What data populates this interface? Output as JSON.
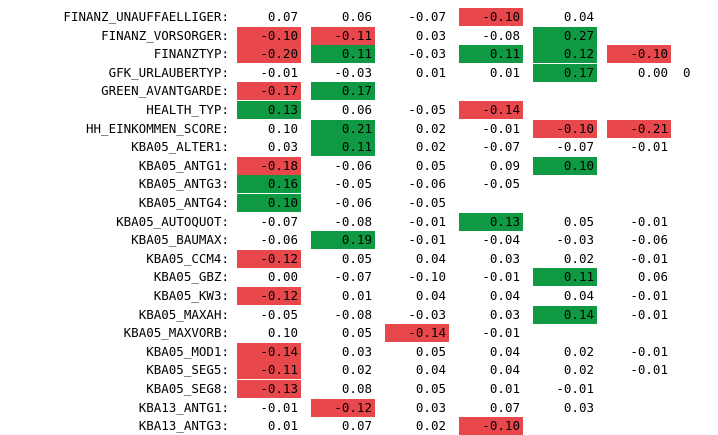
{
  "colors": {
    "negative": "#e8474c",
    "positive": "#0f9942"
  },
  "rows": [
    {
      "label": "FINANZ_UNAUFFAELLIGER:",
      "cells": [
        {
          "v": "0.07"
        },
        {
          "v": "0.06"
        },
        {
          "v": "-0.07"
        },
        {
          "v": "-0.10",
          "c": "red"
        },
        {
          "v": "0.04"
        },
        {
          "v": ""
        }
      ]
    },
    {
      "label": "FINANZ_VORSORGER:",
      "cells": [
        {
          "v": "-0.10",
          "c": "red"
        },
        {
          "v": "-0.11",
          "c": "red"
        },
        {
          "v": "0.03"
        },
        {
          "v": "-0.08"
        },
        {
          "v": "0.27",
          "c": "green"
        },
        {
          "v": ""
        }
      ]
    },
    {
      "label": "FINANZTYP:",
      "cells": [
        {
          "v": "-0.20",
          "c": "red"
        },
        {
          "v": "0.11",
          "c": "green"
        },
        {
          "v": "-0.03"
        },
        {
          "v": "0.11",
          "c": "green"
        },
        {
          "v": "0.12",
          "c": "green"
        },
        {
          "v": "-0.10",
          "c": "red"
        }
      ]
    },
    {
      "label": "GFK_URLAUBERTYP:",
      "cells": [
        {
          "v": "-0.01"
        },
        {
          "v": "-0.03"
        },
        {
          "v": "0.01"
        },
        {
          "v": "0.01"
        },
        {
          "v": "0.17",
          "c": "green"
        },
        {
          "v": "0.00"
        }
      ],
      "overflow": "0"
    },
    {
      "label": "GREEN_AVANTGARDE:",
      "cells": [
        {
          "v": "-0.17",
          "c": "red"
        },
        {
          "v": "0.17",
          "c": "green"
        },
        {
          "v": ""
        },
        {
          "v": ""
        },
        {
          "v": ""
        },
        {
          "v": ""
        }
      ]
    },
    {
      "label": "HEALTH_TYP:",
      "cells": [
        {
          "v": "0.13",
          "c": "green"
        },
        {
          "v": "0.06"
        },
        {
          "v": "-0.05"
        },
        {
          "v": "-0.14",
          "c": "red"
        },
        {
          "v": ""
        },
        {
          "v": ""
        }
      ]
    },
    {
      "label": "HH_EINKOMMEN_SCORE:",
      "cells": [
        {
          "v": "0.10"
        },
        {
          "v": "0.21",
          "c": "green"
        },
        {
          "v": "0.02"
        },
        {
          "v": "-0.01"
        },
        {
          "v": "-0.10",
          "c": "red"
        },
        {
          "v": "-0.21",
          "c": "red"
        }
      ]
    },
    {
      "label": "KBA05_ALTER1:",
      "cells": [
        {
          "v": "0.03"
        },
        {
          "v": "0.11",
          "c": "green"
        },
        {
          "v": "0.02"
        },
        {
          "v": "-0.07"
        },
        {
          "v": "-0.07"
        },
        {
          "v": "-0.01"
        }
      ]
    },
    {
      "label": "KBA05_ANTG1:",
      "cells": [
        {
          "v": "-0.18",
          "c": "red"
        },
        {
          "v": "-0.06"
        },
        {
          "v": "0.05"
        },
        {
          "v": "0.09"
        },
        {
          "v": "0.10",
          "c": "green"
        },
        {
          "v": ""
        }
      ]
    },
    {
      "label": "KBA05_ANTG3:",
      "cells": [
        {
          "v": "0.16",
          "c": "green"
        },
        {
          "v": "-0.05"
        },
        {
          "v": "-0.06"
        },
        {
          "v": "-0.05"
        },
        {
          "v": ""
        },
        {
          "v": ""
        }
      ]
    },
    {
      "label": "KBA05_ANTG4:",
      "cells": [
        {
          "v": "0.10",
          "c": "green"
        },
        {
          "v": "-0.06"
        },
        {
          "v": "-0.05"
        },
        {
          "v": ""
        },
        {
          "v": ""
        },
        {
          "v": ""
        }
      ]
    },
    {
      "label": "KBA05_AUTOQUOT:",
      "cells": [
        {
          "v": "-0.07"
        },
        {
          "v": "-0.08"
        },
        {
          "v": "-0.01"
        },
        {
          "v": "0.13",
          "c": "green"
        },
        {
          "v": "0.05"
        },
        {
          "v": "-0.01"
        }
      ]
    },
    {
      "label": "KBA05_BAUMAX:",
      "cells": [
        {
          "v": "-0.06"
        },
        {
          "v": "0.19",
          "c": "green"
        },
        {
          "v": "-0.01"
        },
        {
          "v": "-0.04"
        },
        {
          "v": "-0.03"
        },
        {
          "v": "-0.06"
        }
      ]
    },
    {
      "label": "KBA05_CCM4:",
      "cells": [
        {
          "v": "-0.12",
          "c": "red"
        },
        {
          "v": "0.05"
        },
        {
          "v": "0.04"
        },
        {
          "v": "0.03"
        },
        {
          "v": "0.02"
        },
        {
          "v": "-0.01"
        }
      ]
    },
    {
      "label": "KBA05_GBZ:",
      "cells": [
        {
          "v": "0.00"
        },
        {
          "v": "-0.07"
        },
        {
          "v": "-0.10"
        },
        {
          "v": "-0.01"
        },
        {
          "v": "0.11",
          "c": "green"
        },
        {
          "v": "0.06"
        }
      ]
    },
    {
      "label": "KBA05_KW3:",
      "cells": [
        {
          "v": "-0.12",
          "c": "red"
        },
        {
          "v": "0.01"
        },
        {
          "v": "0.04"
        },
        {
          "v": "0.04"
        },
        {
          "v": "0.04"
        },
        {
          "v": "-0.01"
        }
      ]
    },
    {
      "label": "KBA05_MAXAH:",
      "cells": [
        {
          "v": "-0.05"
        },
        {
          "v": "-0.08"
        },
        {
          "v": "-0.03"
        },
        {
          "v": "0.03"
        },
        {
          "v": "0.14",
          "c": "green"
        },
        {
          "v": "-0.01"
        }
      ]
    },
    {
      "label": "KBA05_MAXVORB:",
      "cells": [
        {
          "v": "0.10"
        },
        {
          "v": "0.05"
        },
        {
          "v": "-0.14",
          "c": "red"
        },
        {
          "v": "-0.01"
        },
        {
          "v": ""
        },
        {
          "v": ""
        }
      ]
    },
    {
      "label": "KBA05_MOD1:",
      "cells": [
        {
          "v": "-0.14",
          "c": "red"
        },
        {
          "v": "0.03"
        },
        {
          "v": "0.05"
        },
        {
          "v": "0.04"
        },
        {
          "v": "0.02"
        },
        {
          "v": "-0.01"
        }
      ]
    },
    {
      "label": "KBA05_SEG5:",
      "cells": [
        {
          "v": "-0.11",
          "c": "red"
        },
        {
          "v": "0.02"
        },
        {
          "v": "0.04"
        },
        {
          "v": "0.04"
        },
        {
          "v": "0.02"
        },
        {
          "v": "-0.01"
        }
      ]
    },
    {
      "label": "KBA05_SEG8:",
      "cells": [
        {
          "v": "-0.13",
          "c": "red"
        },
        {
          "v": "0.08"
        },
        {
          "v": "0.05"
        },
        {
          "v": "0.01"
        },
        {
          "v": "-0.01"
        },
        {
          "v": ""
        }
      ]
    },
    {
      "label": "KBA13_ANTG1:",
      "cells": [
        {
          "v": "-0.01"
        },
        {
          "v": "-0.12",
          "c": "red"
        },
        {
          "v": "0.03"
        },
        {
          "v": "0.07"
        },
        {
          "v": "0.03"
        },
        {
          "v": ""
        }
      ]
    },
    {
      "label": "KBA13_ANTG3:",
      "cells": [
        {
          "v": "0.01"
        },
        {
          "v": "0.07"
        },
        {
          "v": "0.02"
        },
        {
          "v": "-0.10",
          "c": "red"
        },
        {
          "v": ""
        },
        {
          "v": ""
        }
      ]
    }
  ]
}
